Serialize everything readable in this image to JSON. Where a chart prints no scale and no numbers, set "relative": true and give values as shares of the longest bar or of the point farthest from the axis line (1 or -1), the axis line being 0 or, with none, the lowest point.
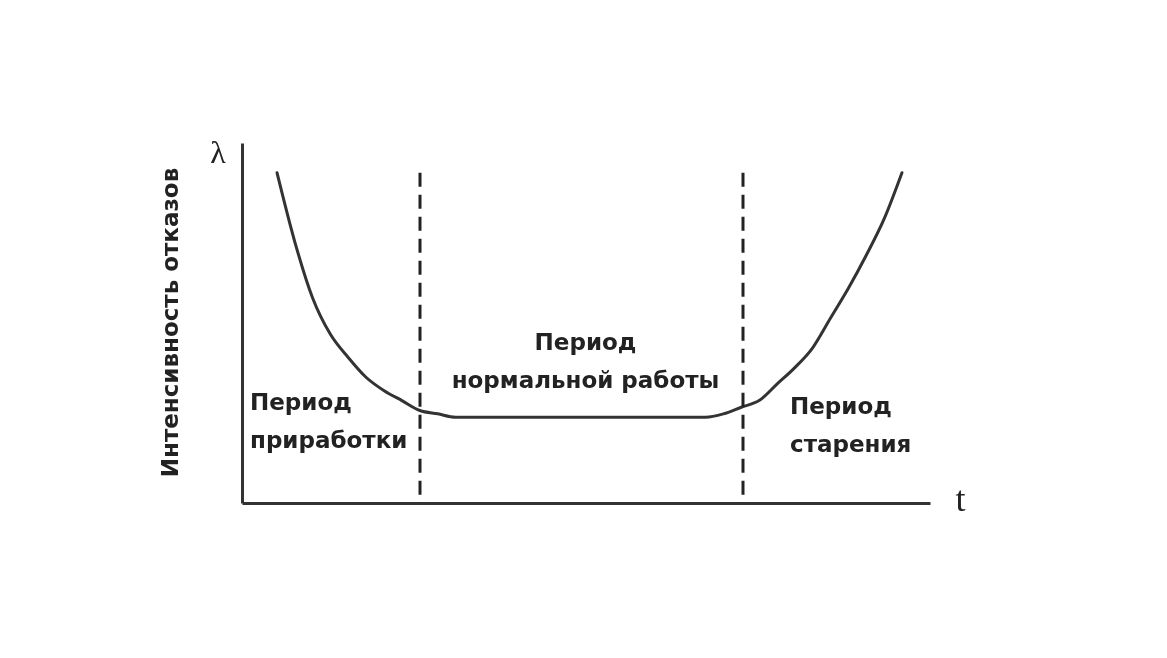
{
  "chart_data": {
    "type": "line",
    "relative": true,
    "xlabel": "t",
    "ylabel": "Интенсивность отказов",
    "categories": [
      null,
      null,
      null,
      null,
      null,
      null,
      null,
      null,
      null,
      null,
      null,
      null,
      null,
      null,
      null,
      null,
      null,
      null,
      null,
      null,
      null,
      null,
      null,
      null,
      null,
      null,
      null,
      null,
      null,
      null,
      null,
      null,
      null,
      null,
      null,
      null
    ],
    "series": [
      {
        "color": "#333333",
        "values": [
          1.0,
          0.79,
          0.62,
          0.51,
          0.44,
          0.38,
          0.34,
          0.31,
          0.28,
          0.27,
          0.26,
          0.26,
          0.26,
          0.26,
          0.26,
          0.26,
          0.26,
          0.26,
          0.26,
          0.26,
          0.26,
          0.26,
          0.26,
          0.26,
          0.26,
          0.27,
          0.29,
          0.31,
          0.36,
          0.41,
          0.47,
          0.56,
          0.65,
          0.75,
          0.86,
          1.0
        ]
      }
    ],
    "annotations": [
      "λ",
      "Период\nприработки",
      "Период\nнормальной работы",
      "Период\nстарения"
    ]
  }
}
